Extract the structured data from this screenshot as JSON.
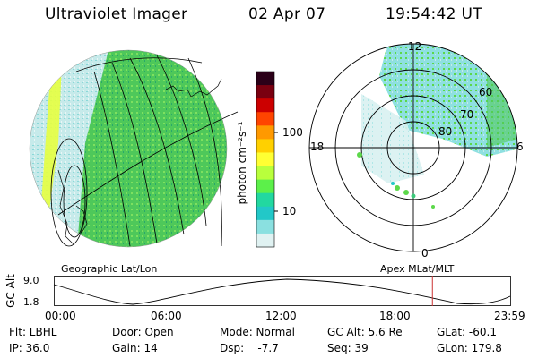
{
  "header": {
    "instrument": "Ultraviolet Imager",
    "date": "02 Apr 07",
    "time": "19:54:42 UT"
  },
  "colorbar": {
    "unit_label": "photon cm⁻²s⁻¹",
    "ticks": [
      "100",
      "10"
    ],
    "colors": [
      "#2b0018",
      "#7a0010",
      "#cc0000",
      "#ff4400",
      "#ff9900",
      "#ffd000",
      "#ffff33",
      "#b9ff3c",
      "#5cf04a",
      "#22d8a0",
      "#22c8c8",
      "#8ae0e0",
      "#e0f2f2"
    ]
  },
  "panels": {
    "geographic_label": "Geographic Lat/Lon",
    "apex_label": "Apex  MLat/MLT"
  },
  "polar": {
    "mlt_labels": {
      "top": "12",
      "left": "18",
      "right": "6",
      "bottom": "0"
    },
    "mlat_labels": [
      "60",
      "70",
      "80"
    ]
  },
  "timeline": {
    "axis_label": "GC Alt",
    "y_ticks": [
      "9.0",
      "1.8"
    ],
    "x_ticks": [
      "00:00",
      "06:00",
      "12:00",
      "18:00",
      "23:59"
    ],
    "current_time_hours": 19.91
  },
  "info": {
    "row1": [
      "Flt: LBHL",
      "Door: Open",
      "Mode: Normal",
      "GC Alt: 5.6 Re",
      "GLat: -60.1"
    ],
    "row2": [
      "IP: 36.0",
      "Gain: 14",
      "Dsp:    -7.7",
      "Seq: 39",
      "GLon: 179.8"
    ]
  },
  "colors": {
    "aurora_green": "#5cd84a",
    "dayglow_cyan": "#8ae0e0",
    "marker_red": "#cc3333"
  }
}
